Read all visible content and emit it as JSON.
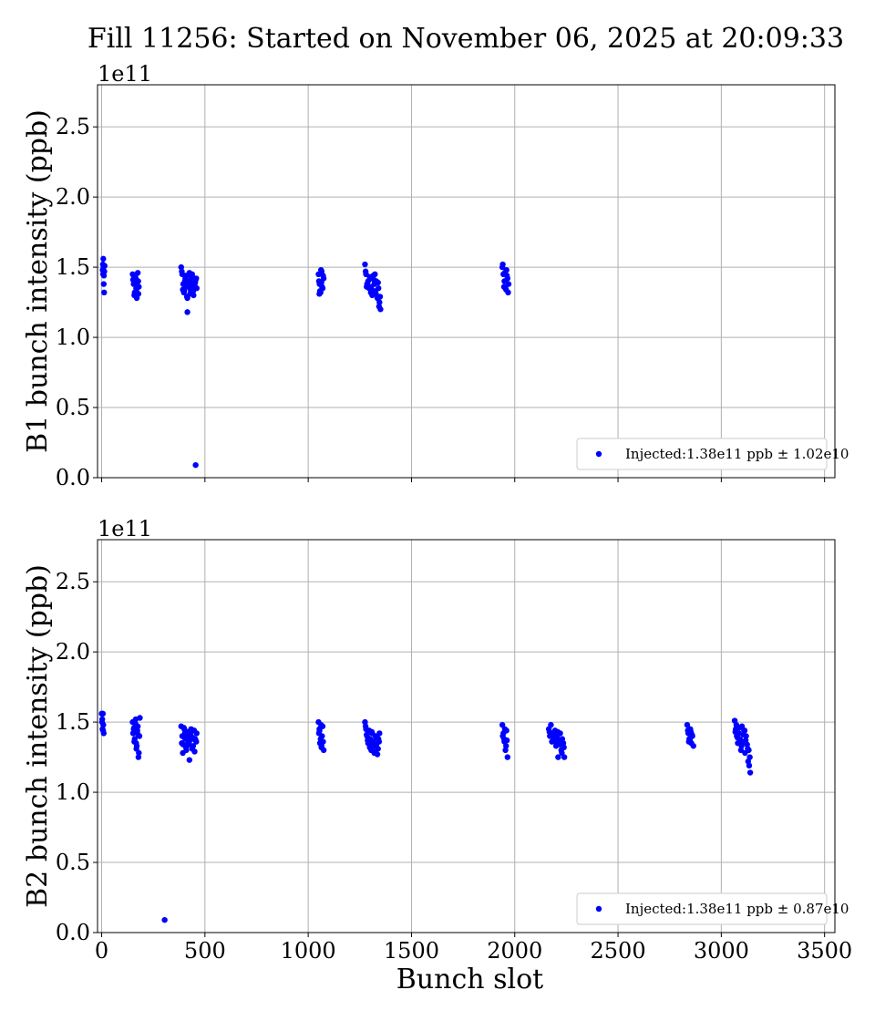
{
  "title": "Fill 11256: Started on November 06, 2025 at 20:09:33",
  "colors": {
    "marker": "#0000ff",
    "grid": "#b0b0b0"
  },
  "chart_data": [
    {
      "type": "scatter",
      "ylabel": "B1 bunch intensity (ppb)",
      "xlabel": "",
      "y_offset_label": "1e11",
      "xlim": [
        -20,
        3550
      ],
      "ylim": [
        0,
        2.8
      ],
      "xticks": [
        0,
        500,
        1000,
        1500,
        2000,
        2500,
        3000,
        3500
      ],
      "xtick_labels": [
        "",
        "",
        "",
        "",
        "",
        "",
        "",
        ""
      ],
      "yticks": [
        0.0,
        0.5,
        1.0,
        1.5,
        2.0,
        2.5
      ],
      "ytick_labels": [
        "0.0",
        "0.5",
        "1.0",
        "1.5",
        "2.0",
        "2.5"
      ],
      "grid": true,
      "legend_position": "lower-right",
      "series": [
        {
          "name": "Injected:1.38e11 ppb ± 1.02e10",
          "color": "#0000ff",
          "x": [
            5,
            6,
            7,
            8,
            9,
            10,
            11,
            12,
            13,
            14,
            150,
            155,
            160,
            165,
            170,
            175,
            180,
            152,
            158,
            163,
            168,
            173,
            178,
            157,
            167,
            177,
            385,
            390,
            395,
            400,
            405,
            410,
            415,
            420,
            425,
            430,
            435,
            440,
            445,
            450,
            455,
            460,
            388,
            398,
            408,
            418,
            428,
            438,
            448,
            458,
            393,
            403,
            413,
            423,
            433,
            443,
            453,
            415,
            455,
            1050,
            1055,
            1060,
            1065,
            1070,
            1075,
            1052,
            1057,
            1062,
            1067,
            1072,
            1054,
            1064,
            1275,
            1280,
            1285,
            1290,
            1295,
            1300,
            1305,
            1310,
            1315,
            1320,
            1325,
            1330,
            1335,
            1340,
            1345,
            1350,
            1278,
            1288,
            1298,
            1308,
            1318,
            1328,
            1338,
            1348,
            1283,
            1303,
            1323,
            1343,
            1940,
            1945,
            1950,
            1955,
            1960,
            1965,
            1970,
            1942,
            1948,
            1952,
            1958,
            1962,
            1968
          ],
          "y": [
            1.48,
            1.52,
            1.45,
            1.56,
            1.5,
            1.38,
            1.44,
            1.32,
            1.47,
            1.51,
            1.45,
            1.38,
            1.32,
            1.42,
            1.28,
            1.46,
            1.36,
            1.41,
            1.3,
            1.44,
            1.33,
            1.39,
            1.31,
            1.43,
            1.35,
            1.4,
            1.5,
            1.45,
            1.38,
            1.33,
            1.42,
            1.36,
            1.28,
            1.4,
            1.46,
            1.34,
            1.39,
            1.43,
            1.3,
            1.37,
            1.41,
            1.35,
            1.47,
            1.32,
            1.44,
            1.38,
            1.31,
            1.45,
            1.36,
            1.42,
            1.34,
            1.4,
            1.29,
            1.37,
            1.43,
            1.33,
            1.39,
            1.18,
            0.09,
            1.45,
            1.38,
            1.32,
            1.47,
            1.35,
            1.42,
            1.4,
            1.33,
            1.48,
            1.36,
            1.44,
            1.31,
            1.39,
            1.52,
            1.45,
            1.38,
            1.4,
            1.35,
            1.42,
            1.36,
            1.3,
            1.44,
            1.38,
            1.33,
            1.4,
            1.28,
            1.35,
            1.25,
            1.2,
            1.47,
            1.37,
            1.43,
            1.34,
            1.41,
            1.31,
            1.39,
            1.29,
            1.36,
            1.32,
            1.45,
            1.22,
            1.5,
            1.45,
            1.4,
            1.35,
            1.48,
            1.42,
            1.38,
            1.52,
            1.36,
            1.46,
            1.34,
            1.44,
            1.32
          ]
        }
      ]
    },
    {
      "type": "scatter",
      "ylabel": "B2 bunch intensity (ppb)",
      "xlabel": "Bunch slot",
      "y_offset_label": "1e11",
      "xlim": [
        -20,
        3550
      ],
      "ylim": [
        0,
        2.8
      ],
      "xticks": [
        0,
        500,
        1000,
        1500,
        2000,
        2500,
        3000,
        3500
      ],
      "xtick_labels": [
        "0",
        "500",
        "1000",
        "1500",
        "2000",
        "2500",
        "3000",
        "3500"
      ],
      "yticks": [
        0.0,
        0.5,
        1.0,
        1.5,
        2.0,
        2.5
      ],
      "ytick_labels": [
        "0.0",
        "0.5",
        "1.0",
        "1.5",
        "2.0",
        "2.5"
      ],
      "grid": true,
      "legend_position": "lower-right",
      "series": [
        {
          "name": "Injected:1.38e11 ppb ± 0.87e10",
          "color": "#0000ff",
          "x": [
            0,
            2,
            4,
            6,
            8,
            10,
            3,
            7,
            150,
            155,
            160,
            165,
            170,
            175,
            180,
            185,
            152,
            158,
            163,
            168,
            173,
            178,
            183,
            157,
            167,
            177,
            305,
            385,
            390,
            395,
            400,
            405,
            410,
            415,
            420,
            425,
            430,
            435,
            440,
            445,
            450,
            455,
            460,
            388,
            398,
            408,
            418,
            428,
            438,
            448,
            458,
            393,
            403,
            413,
            423,
            433,
            443,
            453,
            1050,
            1055,
            1060,
            1065,
            1070,
            1075,
            1052,
            1057,
            1062,
            1067,
            1072,
            1054,
            1064,
            1275,
            1280,
            1285,
            1290,
            1295,
            1300,
            1305,
            1310,
            1315,
            1320,
            1325,
            1330,
            1335,
            1340,
            1345,
            1278,
            1288,
            1298,
            1308,
            1318,
            1328,
            1338,
            1283,
            1303,
            1323,
            1343,
            1940,
            1945,
            1950,
            1955,
            1960,
            1965,
            1942,
            1948,
            1952,
            1958,
            1962,
            2165,
            2170,
            2175,
            2180,
            2185,
            2190,
            2195,
            2200,
            2205,
            2210,
            2215,
            2220,
            2225,
            2230,
            2235,
            2240,
            2168,
            2178,
            2188,
            2198,
            2208,
            2218,
            2228,
            2238,
            2835,
            2840,
            2845,
            2850,
            2855,
            2860,
            2865,
            2838,
            2848,
            2858,
            2843,
            2853,
            3065,
            3070,
            3075,
            3080,
            3085,
            3090,
            3095,
            3100,
            3105,
            3110,
            3115,
            3120,
            3125,
            3130,
            3135,
            3140,
            3068,
            3078,
            3088,
            3098,
            3108,
            3118,
            3128,
            3138,
            3073,
            3093,
            3113,
            3133
          ],
          "y": [
            1.56,
            1.5,
            1.45,
            1.56,
            1.48,
            1.42,
            1.52,
            1.44,
            1.5,
            1.45,
            1.38,
            1.52,
            1.33,
            1.47,
            1.28,
            1.53,
            1.42,
            1.36,
            1.49,
            1.31,
            1.44,
            1.25,
            1.4,
            1.46,
            1.35,
            1.41,
            0.09,
            1.47,
            1.4,
            1.34,
            1.45,
            1.38,
            1.3,
            1.43,
            1.36,
            1.23,
            1.41,
            1.33,
            1.39,
            1.44,
            1.29,
            1.37,
            1.42,
            1.35,
            1.46,
            1.32,
            1.4,
            1.37,
            1.31,
            1.44,
            1.36,
            1.28,
            1.42,
            1.34,
            1.39,
            1.45,
            1.33,
            1.38,
            1.5,
            1.44,
            1.38,
            1.33,
            1.47,
            1.3,
            1.42,
            1.35,
            1.48,
            1.4,
            1.36,
            1.45,
            1.32,
            1.5,
            1.45,
            1.4,
            1.35,
            1.44,
            1.38,
            1.3,
            1.42,
            1.36,
            1.28,
            1.4,
            1.34,
            1.27,
            1.38,
            1.42,
            1.47,
            1.37,
            1.32,
            1.43,
            1.33,
            1.39,
            1.31,
            1.41,
            1.35,
            1.29,
            1.36,
            1.48,
            1.42,
            1.36,
            1.3,
            1.44,
            1.25,
            1.4,
            1.38,
            1.45,
            1.33,
            1.37,
            1.45,
            1.4,
            1.48,
            1.36,
            1.42,
            1.38,
            1.44,
            1.33,
            1.4,
            1.25,
            1.37,
            1.42,
            1.3,
            1.38,
            1.35,
            1.25,
            1.43,
            1.41,
            1.39,
            1.36,
            1.43,
            1.34,
            1.28,
            1.32,
            1.48,
            1.42,
            1.38,
            1.45,
            1.35,
            1.4,
            1.33,
            1.44,
            1.37,
            1.41,
            1.36,
            1.43,
            1.51,
            1.45,
            1.4,
            1.35,
            1.42,
            1.38,
            1.3,
            1.47,
            1.36,
            1.44,
            1.28,
            1.4,
            1.34,
            1.22,
            1.19,
            1.14,
            1.43,
            1.39,
            1.46,
            1.33,
            1.41,
            1.37,
            1.31,
            1.25,
            1.48,
            1.36,
            1.44,
            1.3
          ]
        }
      ]
    }
  ]
}
